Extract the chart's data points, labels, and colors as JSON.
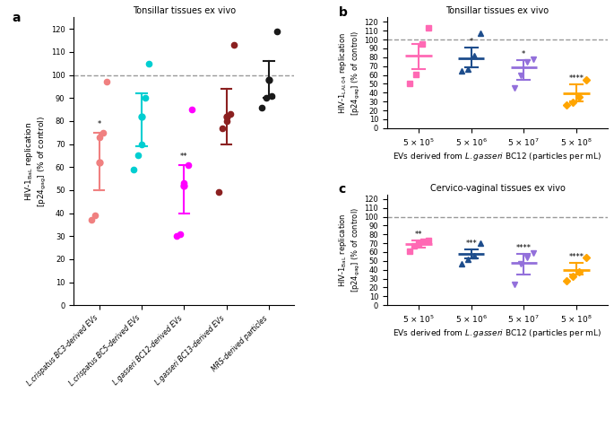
{
  "panel_a": {
    "title": "Tonsillar tissues ex vivo",
    "ylabel": "HIV-1$_{\\rm BaL}$ replication\n[p24$_{\\rm gag}$] (% of control)",
    "ylim": [
      0,
      125
    ],
    "yticks": [
      0,
      10,
      20,
      30,
      40,
      50,
      60,
      70,
      80,
      90,
      100,
      110,
      120
    ],
    "dashed_line": 100,
    "groups": [
      {
        "label": "L.crispatus BC3-derived EVs",
        "color": "#F08080",
        "mean": 62,
        "sem_low": 12,
        "sem_high": 13,
        "points": [
          37,
          39,
          73,
          75,
          97
        ],
        "significance": "*",
        "marker": "o"
      },
      {
        "label": "L.crispatus BC5-derived EVs",
        "color": "#00CED1",
        "mean": 82,
        "sem_low": 13,
        "sem_high": 10,
        "points": [
          59,
          65,
          70,
          90,
          105
        ],
        "significance": "",
        "marker": "o"
      },
      {
        "label": "L.gasseri BC12-derived EVs",
        "color": "#FF00FF",
        "mean": 52,
        "sem_low": 12,
        "sem_high": 9,
        "points": [
          30,
          31,
          53,
          61,
          85
        ],
        "significance": "**",
        "marker": "o"
      },
      {
        "label": "L.gasseri BC13-derived EVs",
        "color": "#8B2020",
        "mean": 82,
        "sem_low": 12,
        "sem_high": 12,
        "points": [
          49,
          77,
          80,
          83,
          113
        ],
        "significance": "",
        "marker": "o"
      },
      {
        "label": "MRS-derived particles",
        "color": "#1A1A1A",
        "mean": 98,
        "sem_low": 8,
        "sem_high": 8,
        "points": [
          86,
          90,
          91,
          119
        ],
        "significance": "",
        "marker": "o"
      }
    ]
  },
  "panel_b": {
    "title": "Tonsillar tissues ex vivo",
    "ylabel": "HIV-1$_{\\rm LAI.04}$ replication\n[p24$_{\\rm gag}$] (% of control)",
    "xlabel_prefix": "EVs derived from ",
    "xlabel_italic": "L.gasseri",
    "xlabel_suffix": " BC12 (particles per mL)",
    "ylim": [
      0,
      125
    ],
    "yticks": [
      0,
      10,
      20,
      30,
      40,
      50,
      60,
      70,
      80,
      90,
      100,
      110,
      120
    ],
    "dashed_line": 100,
    "groups": [
      {
        "label": "5 × 10$^{5}$",
        "color": "#FF69B4",
        "mean": 82,
        "sem_low": 15,
        "sem_high": 13,
        "points": [
          50,
          61,
          95,
          113
        ],
        "significance": "",
        "marker": "s"
      },
      {
        "label": "5 × 10$^{6}$",
        "color": "#1E4D8C",
        "mean": 79,
        "sem_low": 10,
        "sem_high": 12,
        "points": [
          65,
          67,
          82,
          107
        ],
        "significance": "*",
        "marker": "^"
      },
      {
        "label": "5 × 10$^{7}$",
        "color": "#9370DB",
        "mean": 69,
        "sem_low": 14,
        "sem_high": 8,
        "points": [
          45,
          60,
          75,
          78
        ],
        "significance": "*",
        "marker": "v"
      },
      {
        "label": "5 × 10$^{8}$",
        "color": "#FFA500",
        "mean": 39,
        "sem_low": 9,
        "sem_high": 10,
        "points": [
          26,
          29,
          35,
          55
        ],
        "significance": "****",
        "marker": "D"
      }
    ]
  },
  "panel_c": {
    "title": "Cervico-vaginal tissues ex vivo",
    "ylabel": "HIV-1$_{\\rm BaL}$ replication\n[p24$_{\\rm gag}$] (% of control)",
    "xlabel_prefix": "EVs derived from ",
    "xlabel_italic": "L.gasseri",
    "xlabel_suffix": " BC12 (particles per mL)",
    "ylim": [
      0,
      125
    ],
    "yticks": [
      0,
      10,
      20,
      30,
      40,
      50,
      60,
      70,
      80,
      90,
      100,
      110,
      120
    ],
    "dashed_line": 100,
    "groups": [
      {
        "label": "5 × 10$^{5}$",
        "color": "#FF69B4",
        "mean": 69,
        "sem_low": 4,
        "sem_high": 4,
        "points": [
          61,
          67,
          70,
          72,
          73
        ],
        "significance": "**",
        "marker": "s"
      },
      {
        "label": "5 × 10$^{6}$",
        "color": "#1E4D8C",
        "mean": 58,
        "sem_low": 5,
        "sem_high": 5,
        "points": [
          47,
          52,
          56,
          70
        ],
        "significance": "***",
        "marker": "^"
      },
      {
        "label": "5 × 10$^{7}$",
        "color": "#9370DB",
        "mean": 48,
        "sem_low": 13,
        "sem_high": 10,
        "points": [
          24,
          47,
          54,
          59
        ],
        "significance": "****",
        "marker": "v"
      },
      {
        "label": "5 × 10$^{8}$",
        "color": "#FFA500",
        "mean": 40,
        "sem_low": 5,
        "sem_high": 8,
        "points": [
          28,
          33,
          38,
          54
        ],
        "significance": "****",
        "marker": "D"
      }
    ]
  }
}
